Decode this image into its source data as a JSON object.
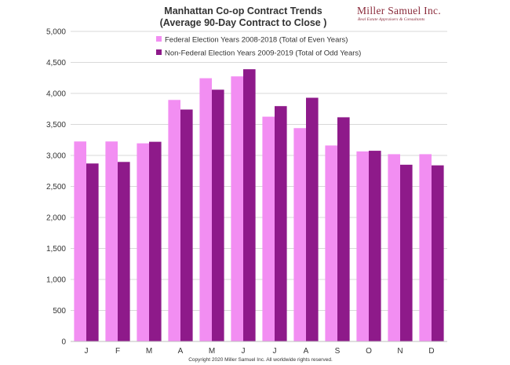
{
  "chart_data": {
    "type": "bar",
    "title": "Manhattan Co-op Contract Trends",
    "subtitle": "(Average 90-Day Contract to Close )",
    "categories": [
      "J",
      "F",
      "M",
      "A",
      "M",
      "J",
      "J",
      "A",
      "S",
      "O",
      "N",
      "D"
    ],
    "series": [
      {
        "name": "Federal Election Years 2008-2018 (Total of Even Years)",
        "color": "#f28ef2",
        "values": [
          3225,
          3225,
          3195,
          3895,
          4245,
          4275,
          3625,
          3440,
          3160,
          3065,
          3020,
          3020
        ]
      },
      {
        "name": "Non-Federal Election Years 2009-2019 (Total of Odd Years)",
        "color": "#8e1a8a",
        "values": [
          2870,
          2895,
          3220,
          3740,
          4060,
          4390,
          3795,
          3930,
          3615,
          3075,
          2850,
          2840
        ]
      }
    ],
    "ylim": [
      0,
      5000
    ],
    "yticks": [
      "0",
      "500",
      "1,000",
      "1,500",
      "2,000",
      "2,500",
      "3,000",
      "3,500",
      "4,000",
      "4,500",
      "5,000"
    ],
    "grid": true,
    "legend_position": "top-left",
    "footer": "Copyright 2020 Miller Samuel Inc. All worldwide rights reserved."
  },
  "logo": {
    "name": "Miller Samuel Inc.",
    "tagline": "Real Estate Appraisers & Consultants"
  }
}
